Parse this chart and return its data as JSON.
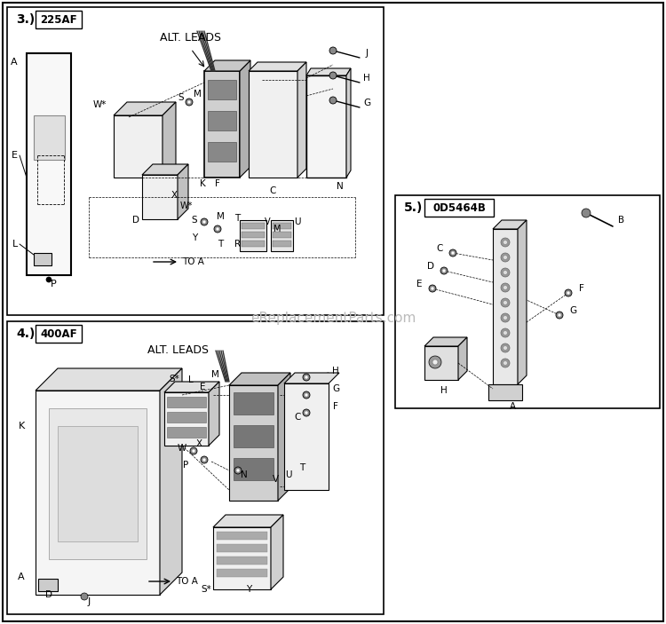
{
  "bg_color": "#ffffff",
  "fig_width": 7.5,
  "fig_height": 7.03,
  "dpi": 100,
  "watermark": "eReplacementParts.com",
  "watermark_color": "#bbbbbb",
  "line_color": "#1a1a1a",
  "box3_label": "3.)",
  "box3_sublabel": "225AF",
  "box4_label": "4.)",
  "box4_sublabel": "400AF",
  "box5_label": "5.)",
  "box5_sublabel": "0D5464B"
}
